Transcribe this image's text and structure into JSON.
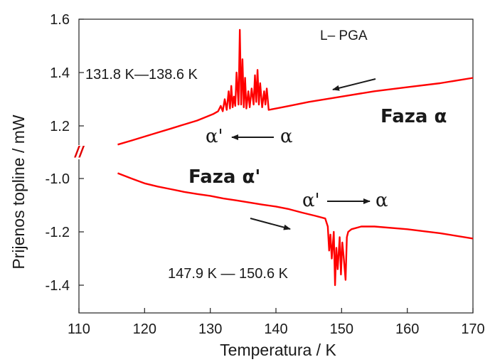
{
  "chart_data": {
    "type": "line",
    "xlabel": "Temperatura / K",
    "ylabel": "Prijenos topline / mW",
    "xlim": [
      110,
      170
    ],
    "x_ticks": [
      "110",
      "120",
      "130",
      "140",
      "150",
      "160",
      "170"
    ],
    "y_ticks_upper": [
      "1.6",
      "1.4",
      "1.2"
    ],
    "y_ticks_lower": [
      "-1.0",
      "-1.2",
      "-1.4"
    ],
    "axis_break": true,
    "grid": false,
    "line_color": "#ff0000",
    "series": [
      {
        "segment": "upper",
        "direction": "cooling",
        "ylim": [
          1.13,
          1.6
        ],
        "x": [
          115.9,
          118,
          120,
          122,
          124,
          126,
          128,
          129.5,
          130.5,
          131.2,
          131.6,
          131.9,
          132.2,
          132.5,
          132.8,
          133.0,
          133.2,
          133.4,
          133.6,
          133.8,
          134.0,
          134.3,
          134.5,
          134.7,
          134.9,
          135.1,
          135.3,
          135.5,
          135.8,
          136.0,
          136.3,
          136.6,
          136.8,
          137.0,
          137.2,
          137.4,
          137.6,
          137.9,
          138.2,
          138.4,
          138.6,
          138.9,
          140,
          142,
          145,
          150,
          155,
          160,
          165,
          170
        ],
        "y": [
          1.13,
          1.145,
          1.16,
          1.175,
          1.19,
          1.205,
          1.22,
          1.235,
          1.245,
          1.255,
          1.275,
          1.255,
          1.3,
          1.26,
          1.33,
          1.265,
          1.35,
          1.27,
          1.31,
          1.275,
          1.4,
          1.28,
          1.56,
          1.28,
          1.45,
          1.27,
          1.38,
          1.265,
          1.33,
          1.27,
          1.34,
          1.28,
          1.39,
          1.29,
          1.41,
          1.28,
          1.36,
          1.27,
          1.33,
          1.28,
          1.34,
          1.26,
          1.265,
          1.275,
          1.29,
          1.31,
          1.33,
          1.345,
          1.36,
          1.38
        ]
      },
      {
        "segment": "lower",
        "direction": "heating",
        "ylim": [
          -1.48,
          -0.9
        ],
        "x": [
          115.9,
          118,
          120,
          122,
          124,
          126,
          128,
          130,
          132,
          134,
          136,
          138,
          140,
          142,
          144,
          146,
          147.5,
          147.9,
          148.1,
          148.3,
          148.5,
          148.8,
          149.0,
          149.2,
          149.4,
          149.7,
          149.9,
          150.1,
          150.3,
          150.6,
          150.8,
          151.0,
          151.5,
          153,
          155,
          160,
          165,
          170
        ],
        "y": [
          -0.98,
          -1.0,
          -1.018,
          -1.03,
          -1.04,
          -1.05,
          -1.058,
          -1.065,
          -1.075,
          -1.082,
          -1.09,
          -1.098,
          -1.105,
          -1.115,
          -1.128,
          -1.14,
          -1.15,
          -1.18,
          -1.27,
          -1.21,
          -1.3,
          -1.2,
          -1.4,
          -1.26,
          -1.34,
          -1.22,
          -1.36,
          -1.24,
          -1.29,
          -1.38,
          -1.22,
          -1.2,
          -1.19,
          -1.18,
          -1.18,
          -1.19,
          -1.205,
          -1.225
        ]
      }
    ],
    "annotations": {
      "sample": "L– PGA",
      "upper_range": "131.8 K—138.6 K",
      "lower_range": "147.9 K — 150.6 K",
      "phase_alpha": "Faza α",
      "phase_alpha_prime": "Faza α'",
      "upper_transition_from": "α'",
      "upper_transition_to": "α",
      "lower_transition_from": "α'",
      "lower_transition_to": "α",
      "break_mark": "//"
    }
  }
}
